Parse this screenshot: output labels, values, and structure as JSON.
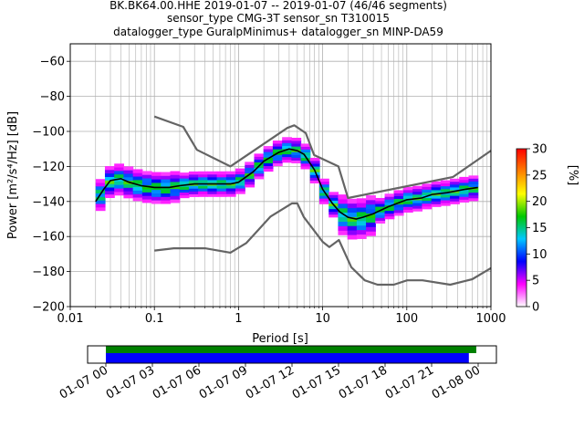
{
  "chart_data": {
    "type": "ppsd",
    "title_lines": [
      "BK.BK64.00.HHE   2019-01-07 -- 2019-01-07  (46/46 segments)",
      "sensor_type CMG-3T sensor_sn T310015",
      "datalogger_type GuralpMinimus+ datalogger_sn MINP-DA59"
    ],
    "xlabel": "Period [s]",
    "ylabel": "Power [m²/s⁴/Hz] [dB]",
    "x_scale": "log",
    "xlim": [
      0.01,
      1000
    ],
    "ylim": [
      -200,
      -50
    ],
    "x_ticks": [
      {
        "value": 0.01,
        "label": "0.01"
      },
      {
        "value": 0.1,
        "label": "0.1"
      },
      {
        "value": 1,
        "label": "1"
      },
      {
        "value": 10,
        "label": "10"
      },
      {
        "value": 100,
        "label": "100"
      },
      {
        "value": 1000,
        "label": "1000"
      }
    ],
    "y_ticks": [
      {
        "value": -60,
        "label": "−60"
      },
      {
        "value": -80,
        "label": "−80"
      },
      {
        "value": -100,
        "label": "−100"
      },
      {
        "value": -120,
        "label": "−120"
      },
      {
        "value": -140,
        "label": "−140"
      },
      {
        "value": -160,
        "label": "−160"
      },
      {
        "value": -180,
        "label": "−180"
      },
      {
        "value": -200,
        "label": "−200"
      }
    ],
    "grid": true,
    "colormap_colors": [
      "#ffffff",
      "#ff00ff",
      "#0000ff",
      "#00c8ff",
      "#00c800",
      "#ffff00",
      "#ff8000",
      "#ff0000"
    ],
    "colorbar": {
      "label": "[%]",
      "range": [
        0,
        30
      ],
      "ticks": [
        {
          "value": 0,
          "label": "0"
        },
        {
          "value": 5,
          "label": "5"
        },
        {
          "value": 10,
          "label": "10"
        },
        {
          "value": 15,
          "label": "15"
        },
        {
          "value": 20,
          "label": "20"
        },
        {
          "value": 25,
          "label": "25"
        },
        {
          "value": 30,
          "label": "30"
        }
      ]
    },
    "noise_models": {
      "color": "#646464",
      "high": [
        {
          "period": 0.1,
          "db": -91.5
        },
        {
          "period": 0.22,
          "db": -97.4
        },
        {
          "period": 0.32,
          "db": -110.5
        },
        {
          "period": 0.8,
          "db": -120
        },
        {
          "period": 3.8,
          "db": -98
        },
        {
          "period": 4.6,
          "db": -96.5
        },
        {
          "period": 6.3,
          "db": -101
        },
        {
          "period": 7.9,
          "db": -113.5
        },
        {
          "period": 15.4,
          "db": -120
        },
        {
          "period": 20,
          "db": -138
        },
        {
          "period": 354.8,
          "db": -126
        },
        {
          "period": 1000,
          "db": -111
        }
      ],
      "low": [
        {
          "period": 0.1,
          "db": -168
        },
        {
          "period": 0.17,
          "db": -166.7
        },
        {
          "period": 0.4,
          "db": -166.7
        },
        {
          "period": 0.8,
          "db": -169.2
        },
        {
          "period": 1.24,
          "db": -163.7
        },
        {
          "period": 2.4,
          "db": -148.6
        },
        {
          "period": 4.3,
          "db": -141.1
        },
        {
          "period": 5,
          "db": -141.1
        },
        {
          "period": 6,
          "db": -149
        },
        {
          "period": 10,
          "db": -163
        },
        {
          "period": 12,
          "db": -166
        },
        {
          "period": 15.6,
          "db": -162
        },
        {
          "period": 21.9,
          "db": -177.5
        },
        {
          "period": 31.6,
          "db": -185
        },
        {
          "period": 45,
          "db": -187.5
        },
        {
          "period": 70,
          "db": -187.5
        },
        {
          "period": 101,
          "db": -185
        },
        {
          "period": 154,
          "db": -185
        },
        {
          "period": 328,
          "db": -187.5
        },
        {
          "period": 600,
          "db": -184.4
        },
        {
          "period": 1000,
          "db": -178
        }
      ]
    },
    "mean_curve": [
      {
        "period": 0.02,
        "db": -140
      },
      {
        "period": 0.025,
        "db": -133
      },
      {
        "period": 0.03,
        "db": -128
      },
      {
        "period": 0.04,
        "db": -127
      },
      {
        "period": 0.05,
        "db": -129
      },
      {
        "period": 0.07,
        "db": -131
      },
      {
        "period": 0.1,
        "db": -132
      },
      {
        "period": 0.15,
        "db": -132
      },
      {
        "period": 0.2,
        "db": -131
      },
      {
        "period": 0.3,
        "db": -130
      },
      {
        "period": 0.5,
        "db": -130
      },
      {
        "period": 0.8,
        "db": -130
      },
      {
        "period": 1,
        "db": -129
      },
      {
        "period": 1.5,
        "db": -123
      },
      {
        "period": 2,
        "db": -117
      },
      {
        "period": 3,
        "db": -112
      },
      {
        "period": 4,
        "db": -110
      },
      {
        "period": 5,
        "db": -111
      },
      {
        "period": 6,
        "db": -113
      },
      {
        "period": 8,
        "db": -122
      },
      {
        "period": 10,
        "db": -133
      },
      {
        "period": 13,
        "db": -141
      },
      {
        "period": 16,
        "db": -146
      },
      {
        "period": 20,
        "db": -149
      },
      {
        "period": 25,
        "db": -150
      },
      {
        "period": 30,
        "db": -149
      },
      {
        "period": 40,
        "db": -147
      },
      {
        "period": 60,
        "db": -143
      },
      {
        "period": 100,
        "db": -139
      },
      {
        "period": 150,
        "db": -138
      },
      {
        "period": 200,
        "db": -136
      },
      {
        "period": 300,
        "db": -135
      },
      {
        "period": 500,
        "db": -133
      },
      {
        "period": 700,
        "db": -132
      }
    ],
    "histogram_band": {
      "period_range": [
        0.02,
        700
      ],
      "center_curve": "mean_curve",
      "columns_per_decade": 9,
      "rows_per_column": 9,
      "row_step_db": 1.6
    },
    "coverage": {
      "time_ticks": [
        {
          "fraction": 0,
          "label": "01-07 00"
        },
        {
          "fraction": 0.125,
          "label": "01-07 03"
        },
        {
          "fraction": 0.25,
          "label": "01-07 06"
        },
        {
          "fraction": 0.375,
          "label": "01-07 09"
        },
        {
          "fraction": 0.5,
          "label": "01-07 12"
        },
        {
          "fraction": 0.625,
          "label": "01-07 15"
        },
        {
          "fraction": 0.75,
          "label": "01-07 18"
        },
        {
          "fraction": 0.875,
          "label": "01-07 21"
        },
        {
          "fraction": 1,
          "label": "01-08 00"
        }
      ],
      "data_span": {
        "start_fraction": 0,
        "end_fraction": 0.995,
        "color": "#008000"
      },
      "used_span": {
        "start_fraction": 0,
        "end_fraction": 0.975,
        "color": "#0000ff"
      }
    }
  }
}
